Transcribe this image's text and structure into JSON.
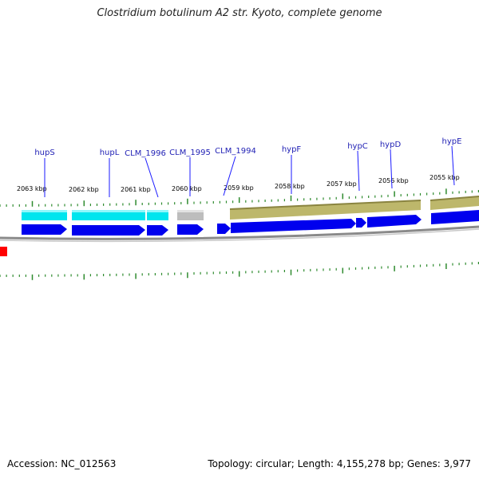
{
  "title": "Clostridium botulinum A2 str. Kyoto, complete genome",
  "accession": "Accession: NC_012563",
  "summary": "Topology: circular; Length: 4,155,278 bp; Genes: 3,977",
  "colors": {
    "backbone": "#808080",
    "tick": "#2e8b2e",
    "label_line": "#1a1aff",
    "label_text": "#1f1fb4",
    "cyan_feature": "#00e5ee",
    "gray_feature": "#bdbdbd",
    "olive_feature": "#bdb76b",
    "cds_arrow": "#0000ee",
    "red_marker": "#ff0000"
  },
  "kbp_labels": [
    "2063 kbp",
    "2062 kbp",
    "2061 kbp",
    "2060 kbp",
    "2059 kbp",
    "2058 kbp",
    "2057 kbp",
    "2056 kbp",
    "2055 kbp"
  ],
  "genes": [
    {
      "name": "hupS"
    },
    {
      "name": "hupL"
    },
    {
      "name": "CLM_1996"
    },
    {
      "name": "CLM_1995"
    },
    {
      "name": "CLM_1994"
    },
    {
      "name": "hypF"
    },
    {
      "name": "hypC"
    },
    {
      "name": "hypD"
    },
    {
      "name": "hypE"
    }
  ],
  "features": {
    "gene_track": [
      "hupS",
      "hupL",
      "CLM_1996",
      "CLM_1995",
      "hypF-hypC-hypD",
      "hypE"
    ],
    "cds_track": [
      "hupS",
      "hupL",
      "CLM_1996",
      "CLM_1995",
      "CLM_1994",
      "hypF",
      "hypC",
      "hypD",
      "hypE"
    ]
  }
}
